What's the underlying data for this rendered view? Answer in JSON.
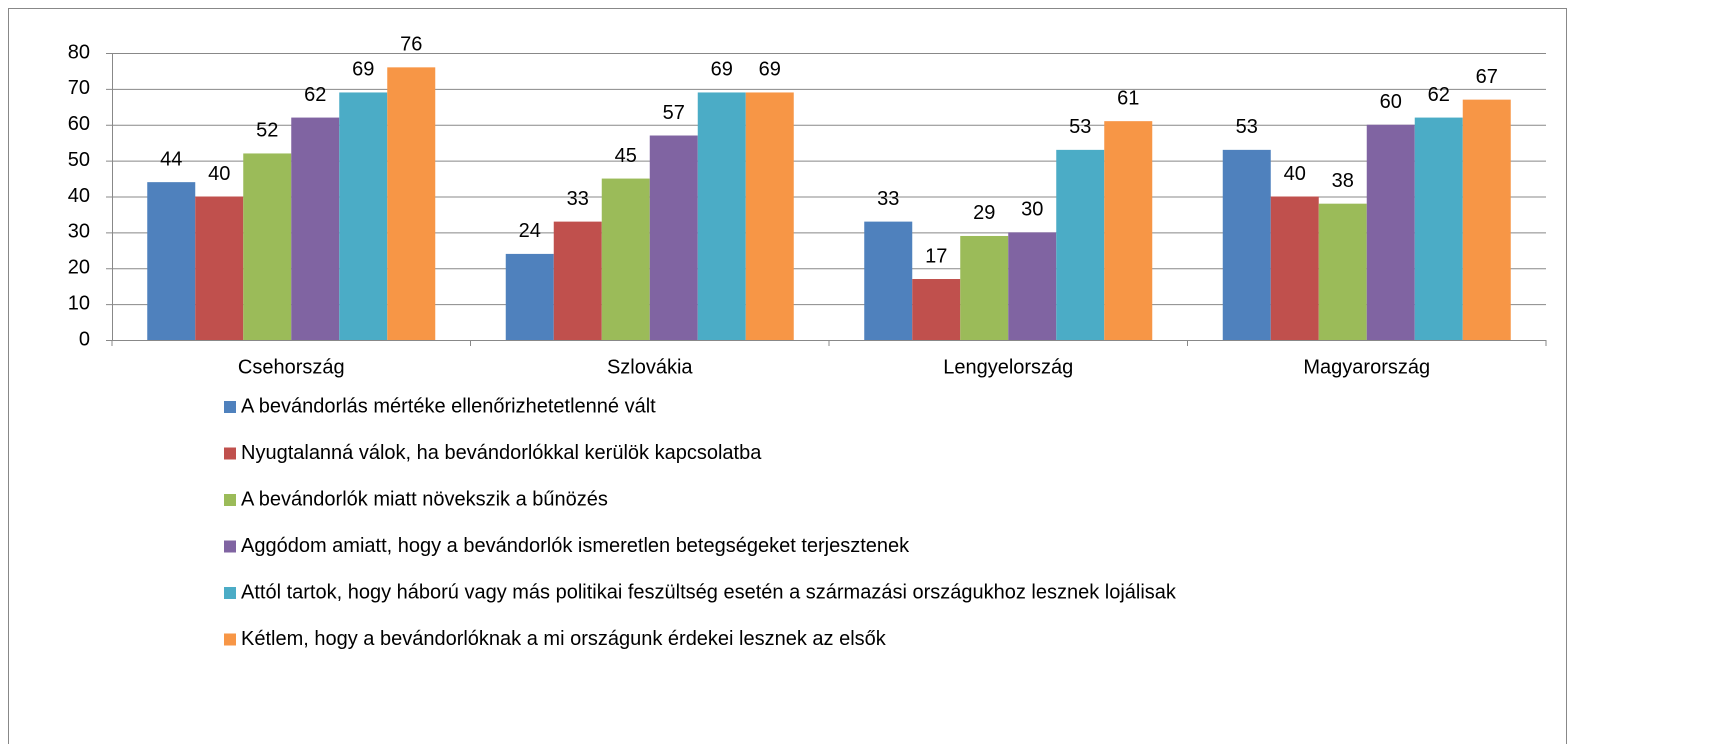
{
  "chart_data": {
    "type": "bar",
    "categories": [
      "Csehország",
      "Szlovákia",
      "Lengyelország",
      "Magyarország"
    ],
    "series": [
      {
        "name": "A bevándorlás mértéke ellenőrizhetetlenné vált",
        "color": "#4f81bd",
        "values": [
          44,
          24,
          33,
          53
        ]
      },
      {
        "name": "Nyugtalanná válok, ha bevándorlókkal kerülök kapcsolatba",
        "color": "#c0504d",
        "values": [
          40,
          33,
          17,
          40
        ]
      },
      {
        "name": "A bevándorlók miatt növekszik a bűnözés",
        "color": "#9bbb59",
        "values": [
          52,
          45,
          29,
          38
        ]
      },
      {
        "name": "Aggódom amiatt, hogy a bevándorlók ismeretlen betegségeket terjesztenek",
        "color": "#8064a2",
        "values": [
          62,
          57,
          30,
          60
        ]
      },
      {
        "name": "Attól tartok, hogy háború vagy más politikai feszültség esetén a származási országukhoz lesznek lojálisak",
        "color": "#4bacc6",
        "values": [
          69,
          69,
          53,
          62
        ]
      },
      {
        "name": "Kétlem, hogy a bevándorlóknak a mi országunk érdekei lesznek az elsők",
        "color": "#f79646",
        "values": [
          76,
          69,
          61,
          67
        ]
      }
    ],
    "ylim": [
      0,
      80
    ],
    "yticks": [
      0,
      10,
      20,
      30,
      40,
      50,
      60,
      70,
      80
    ],
    "grid": true,
    "legend": "bottom"
  }
}
